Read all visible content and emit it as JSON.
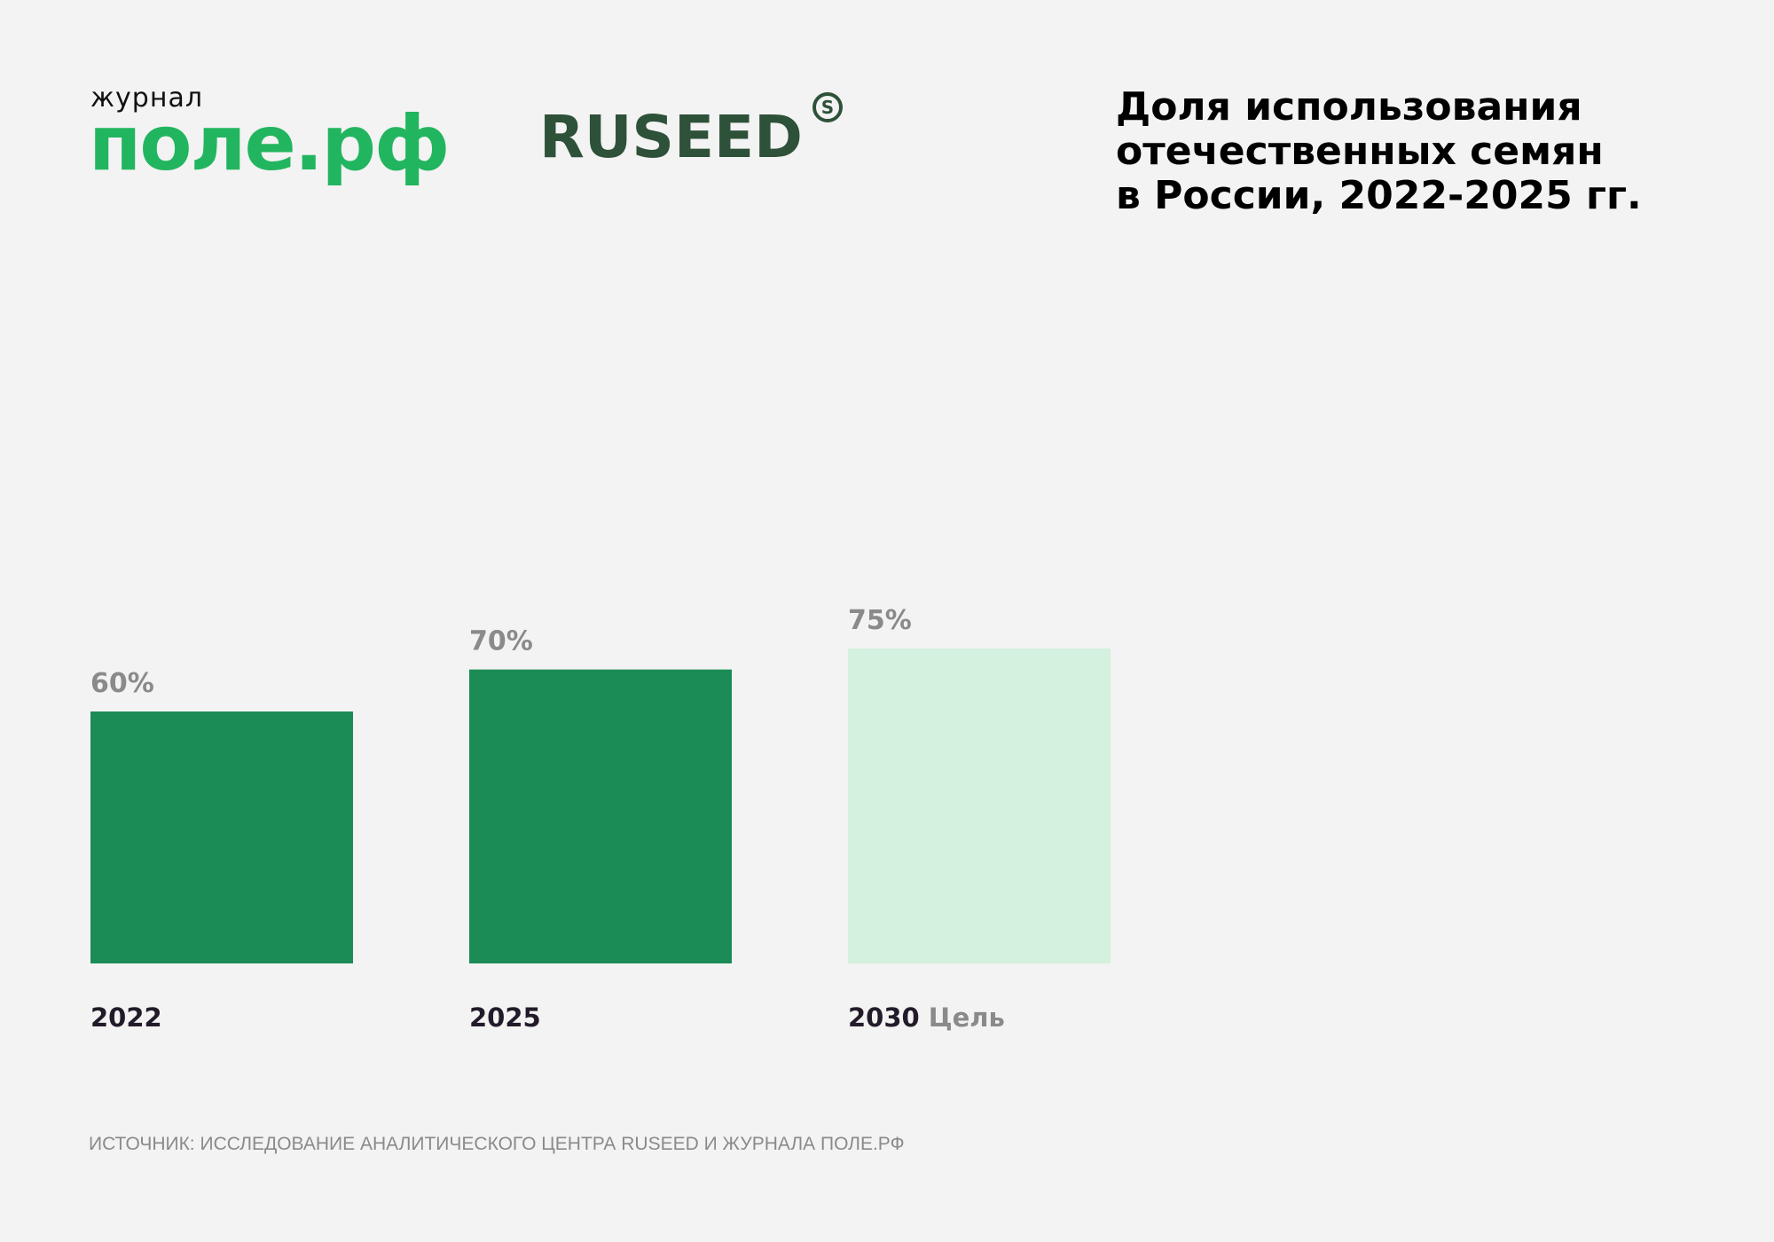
{
  "logos": {
    "pole_small": "журнал",
    "pole_big": "поле.рф",
    "ruseed_word": "RUSEED",
    "ruseed_mark": "S"
  },
  "title_lines": [
    "Доля использования",
    "отечественных семян",
    "в России, 2022-2025 гг."
  ],
  "source": "ИСТОЧНИК: ИССЛЕДОВАНИЕ АНАЛИТИЧЕСКОГО ЦЕНТРА RUSEED И ЖУРНАЛА ПОЛЕ.РФ",
  "colors": {
    "background": "#f3f3f3",
    "bar_actual": "#1b8c56",
    "bar_target": "#d4f0de",
    "value_label": "#8a8a8a",
    "category_label": "#231b29",
    "note_label": "#8a8a8a"
  },
  "chart_data": {
    "type": "bar",
    "categories": [
      "2022",
      "2025",
      "2030"
    ],
    "category_notes": [
      "",
      "",
      "Цель"
    ],
    "values": [
      60,
      70,
      75
    ],
    "value_labels": [
      "60%",
      "70%",
      "75%"
    ],
    "bar_status": [
      "actual",
      "actual",
      "target"
    ],
    "unit": "%",
    "title": "Доля использования отечественных семян в России, 2022-2025 гг.",
    "xlabel": "",
    "ylabel": "",
    "ylim": [
      0,
      100
    ],
    "grid": false,
    "legend": "none"
  }
}
